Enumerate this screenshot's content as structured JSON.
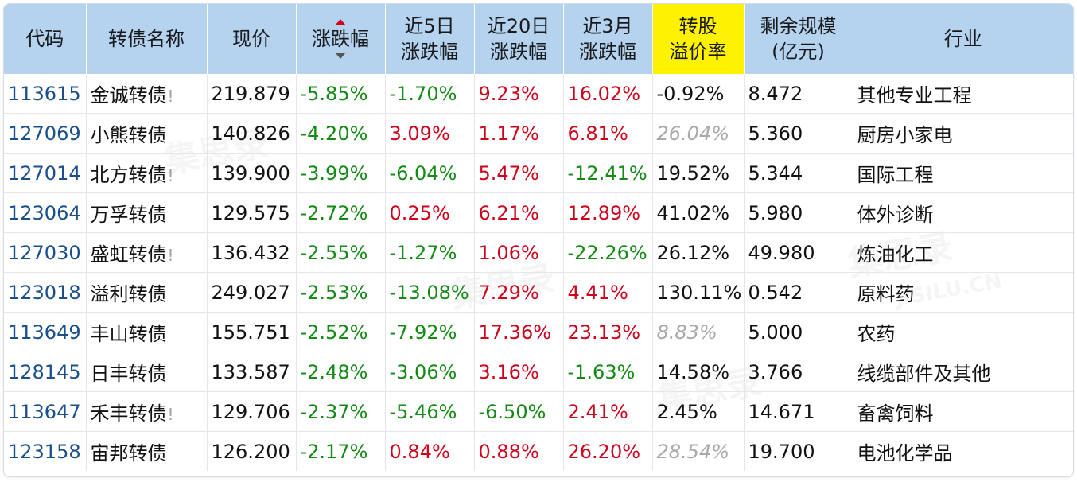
{
  "headers": {
    "code": "代码",
    "name": "转债名称",
    "price": "现价",
    "change": "涨跌幅",
    "chg5d_line1": "近5日",
    "chg5d_line2": "涨跌幅",
    "chg20d_line1": "近20日",
    "chg20d_line2": "涨跌幅",
    "chg3m_line1": "近3月",
    "chg3m_line2": "涨跌幅",
    "premium_line1": "转股",
    "premium_line2": "溢价率",
    "size_line1": "剩余规模",
    "size_line2": "(亿元)",
    "industry": "行业"
  },
  "sort": {
    "column": "change",
    "direction": "asc"
  },
  "colors": {
    "header_bg": "#b5d3ef",
    "highlight_header_bg": "#fff200",
    "positive": "#d0021b",
    "negative": "#138a14",
    "code_link": "#1b4f8c"
  },
  "watermark": {
    "text": "集思录",
    "domain": "JISILU.CN"
  },
  "rows": [
    {
      "code": "113615",
      "name": "金诚转债",
      "warn": "!",
      "price": "219.879",
      "change": "-5.85%",
      "chg5d": "-1.70%",
      "chg20d": "9.23%",
      "chg3m": "16.02%",
      "premium": "-0.92%",
      "premium_gray": false,
      "size": "8.472",
      "industry": "其他专业工程"
    },
    {
      "code": "127069",
      "name": "小熊转债",
      "warn": "",
      "price": "140.826",
      "change": "-4.20%",
      "chg5d": "3.09%",
      "chg20d": "1.17%",
      "chg3m": "6.81%",
      "premium": "26.04%",
      "premium_gray": true,
      "size": "5.360",
      "industry": "厨房小家电"
    },
    {
      "code": "127014",
      "name": "北方转债",
      "warn": "!",
      "price": "139.900",
      "change": "-3.99%",
      "chg5d": "-6.04%",
      "chg20d": "5.47%",
      "chg3m": "-12.41%",
      "premium": "19.52%",
      "premium_gray": false,
      "size": "5.344",
      "industry": "国际工程"
    },
    {
      "code": "123064",
      "name": "万孚转债",
      "warn": "",
      "price": "129.575",
      "change": "-2.72%",
      "chg5d": "0.25%",
      "chg20d": "6.21%",
      "chg3m": "12.89%",
      "premium": "41.02%",
      "premium_gray": false,
      "size": "5.980",
      "industry": "体外诊断"
    },
    {
      "code": "127030",
      "name": "盛虹转债",
      "warn": "!",
      "price": "136.432",
      "change": "-2.55%",
      "chg5d": "-1.27%",
      "chg20d": "1.06%",
      "chg3m": "-22.26%",
      "premium": "26.12%",
      "premium_gray": false,
      "size": "49.980",
      "industry": "炼油化工"
    },
    {
      "code": "123018",
      "name": "溢利转债",
      "warn": "",
      "price": "249.027",
      "change": "-2.53%",
      "chg5d": "-13.08%",
      "chg20d": "7.29%",
      "chg3m": "4.41%",
      "premium": "130.11%",
      "premium_gray": false,
      "size": "0.542",
      "industry": "原料药"
    },
    {
      "code": "113649",
      "name": "丰山转债",
      "warn": "",
      "price": "155.751",
      "change": "-2.52%",
      "chg5d": "-7.92%",
      "chg20d": "17.36%",
      "chg3m": "23.13%",
      "premium": "8.83%",
      "premium_gray": true,
      "size": "5.000",
      "industry": "农药"
    },
    {
      "code": "128145",
      "name": "日丰转债",
      "warn": "",
      "price": "133.587",
      "change": "-2.48%",
      "chg5d": "-3.06%",
      "chg20d": "3.16%",
      "chg3m": "-1.63%",
      "premium": "14.58%",
      "premium_gray": false,
      "size": "3.766",
      "industry": "线缆部件及其他"
    },
    {
      "code": "113647",
      "name": "禾丰转债",
      "warn": "!",
      "price": "129.706",
      "change": "-2.37%",
      "chg5d": "-5.46%",
      "chg20d": "-6.50%",
      "chg3m": "2.41%",
      "premium": "2.45%",
      "premium_gray": false,
      "size": "14.671",
      "industry": "畜禽饲料"
    },
    {
      "code": "123158",
      "name": "宙邦转债",
      "warn": "",
      "price": "126.200",
      "change": "-2.17%",
      "chg5d": "0.84%",
      "chg20d": "0.88%",
      "chg3m": "26.20%",
      "premium": "28.54%",
      "premium_gray": true,
      "size": "19.700",
      "industry": "电池化学品"
    }
  ]
}
